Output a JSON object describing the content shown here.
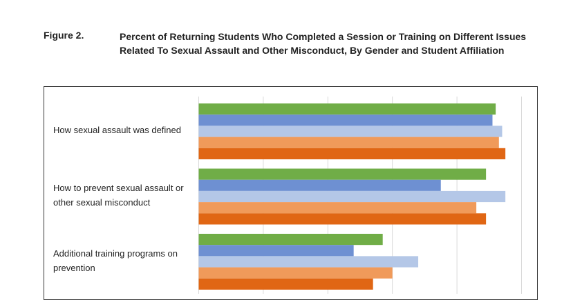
{
  "figure": {
    "number": "Figure 2.",
    "title": "Percent of Returning Students Who Completed a Session or Training on Different Issues Related To Sexual Assault and Other Misconduct, By Gender and Student Affiliation"
  },
  "chart_data": {
    "type": "bar",
    "orientation": "horizontal",
    "categories": [
      "How sexual assault was defined",
      "How to prevent sexual assault or other sexual misconduct",
      "Additional training programs on prevention"
    ],
    "series": [
      {
        "color": "#70AD47",
        "values": [
          92,
          89,
          57
        ]
      },
      {
        "color": "#6E90D2",
        "values": [
          91,
          75,
          48
        ]
      },
      {
        "color": "#B4C7E7",
        "values": [
          94,
          95,
          68
        ]
      },
      {
        "color": "#F09A5A",
        "values": [
          93,
          86,
          60
        ]
      },
      {
        "color": "#E06614",
        "values": [
          95,
          89,
          54
        ]
      }
    ],
    "xlim": [
      0,
      100
    ],
    "xticks": [
      0,
      20,
      40,
      60,
      80,
      100
    ],
    "grid": true,
    "legend": "not visible (cropped)"
  }
}
